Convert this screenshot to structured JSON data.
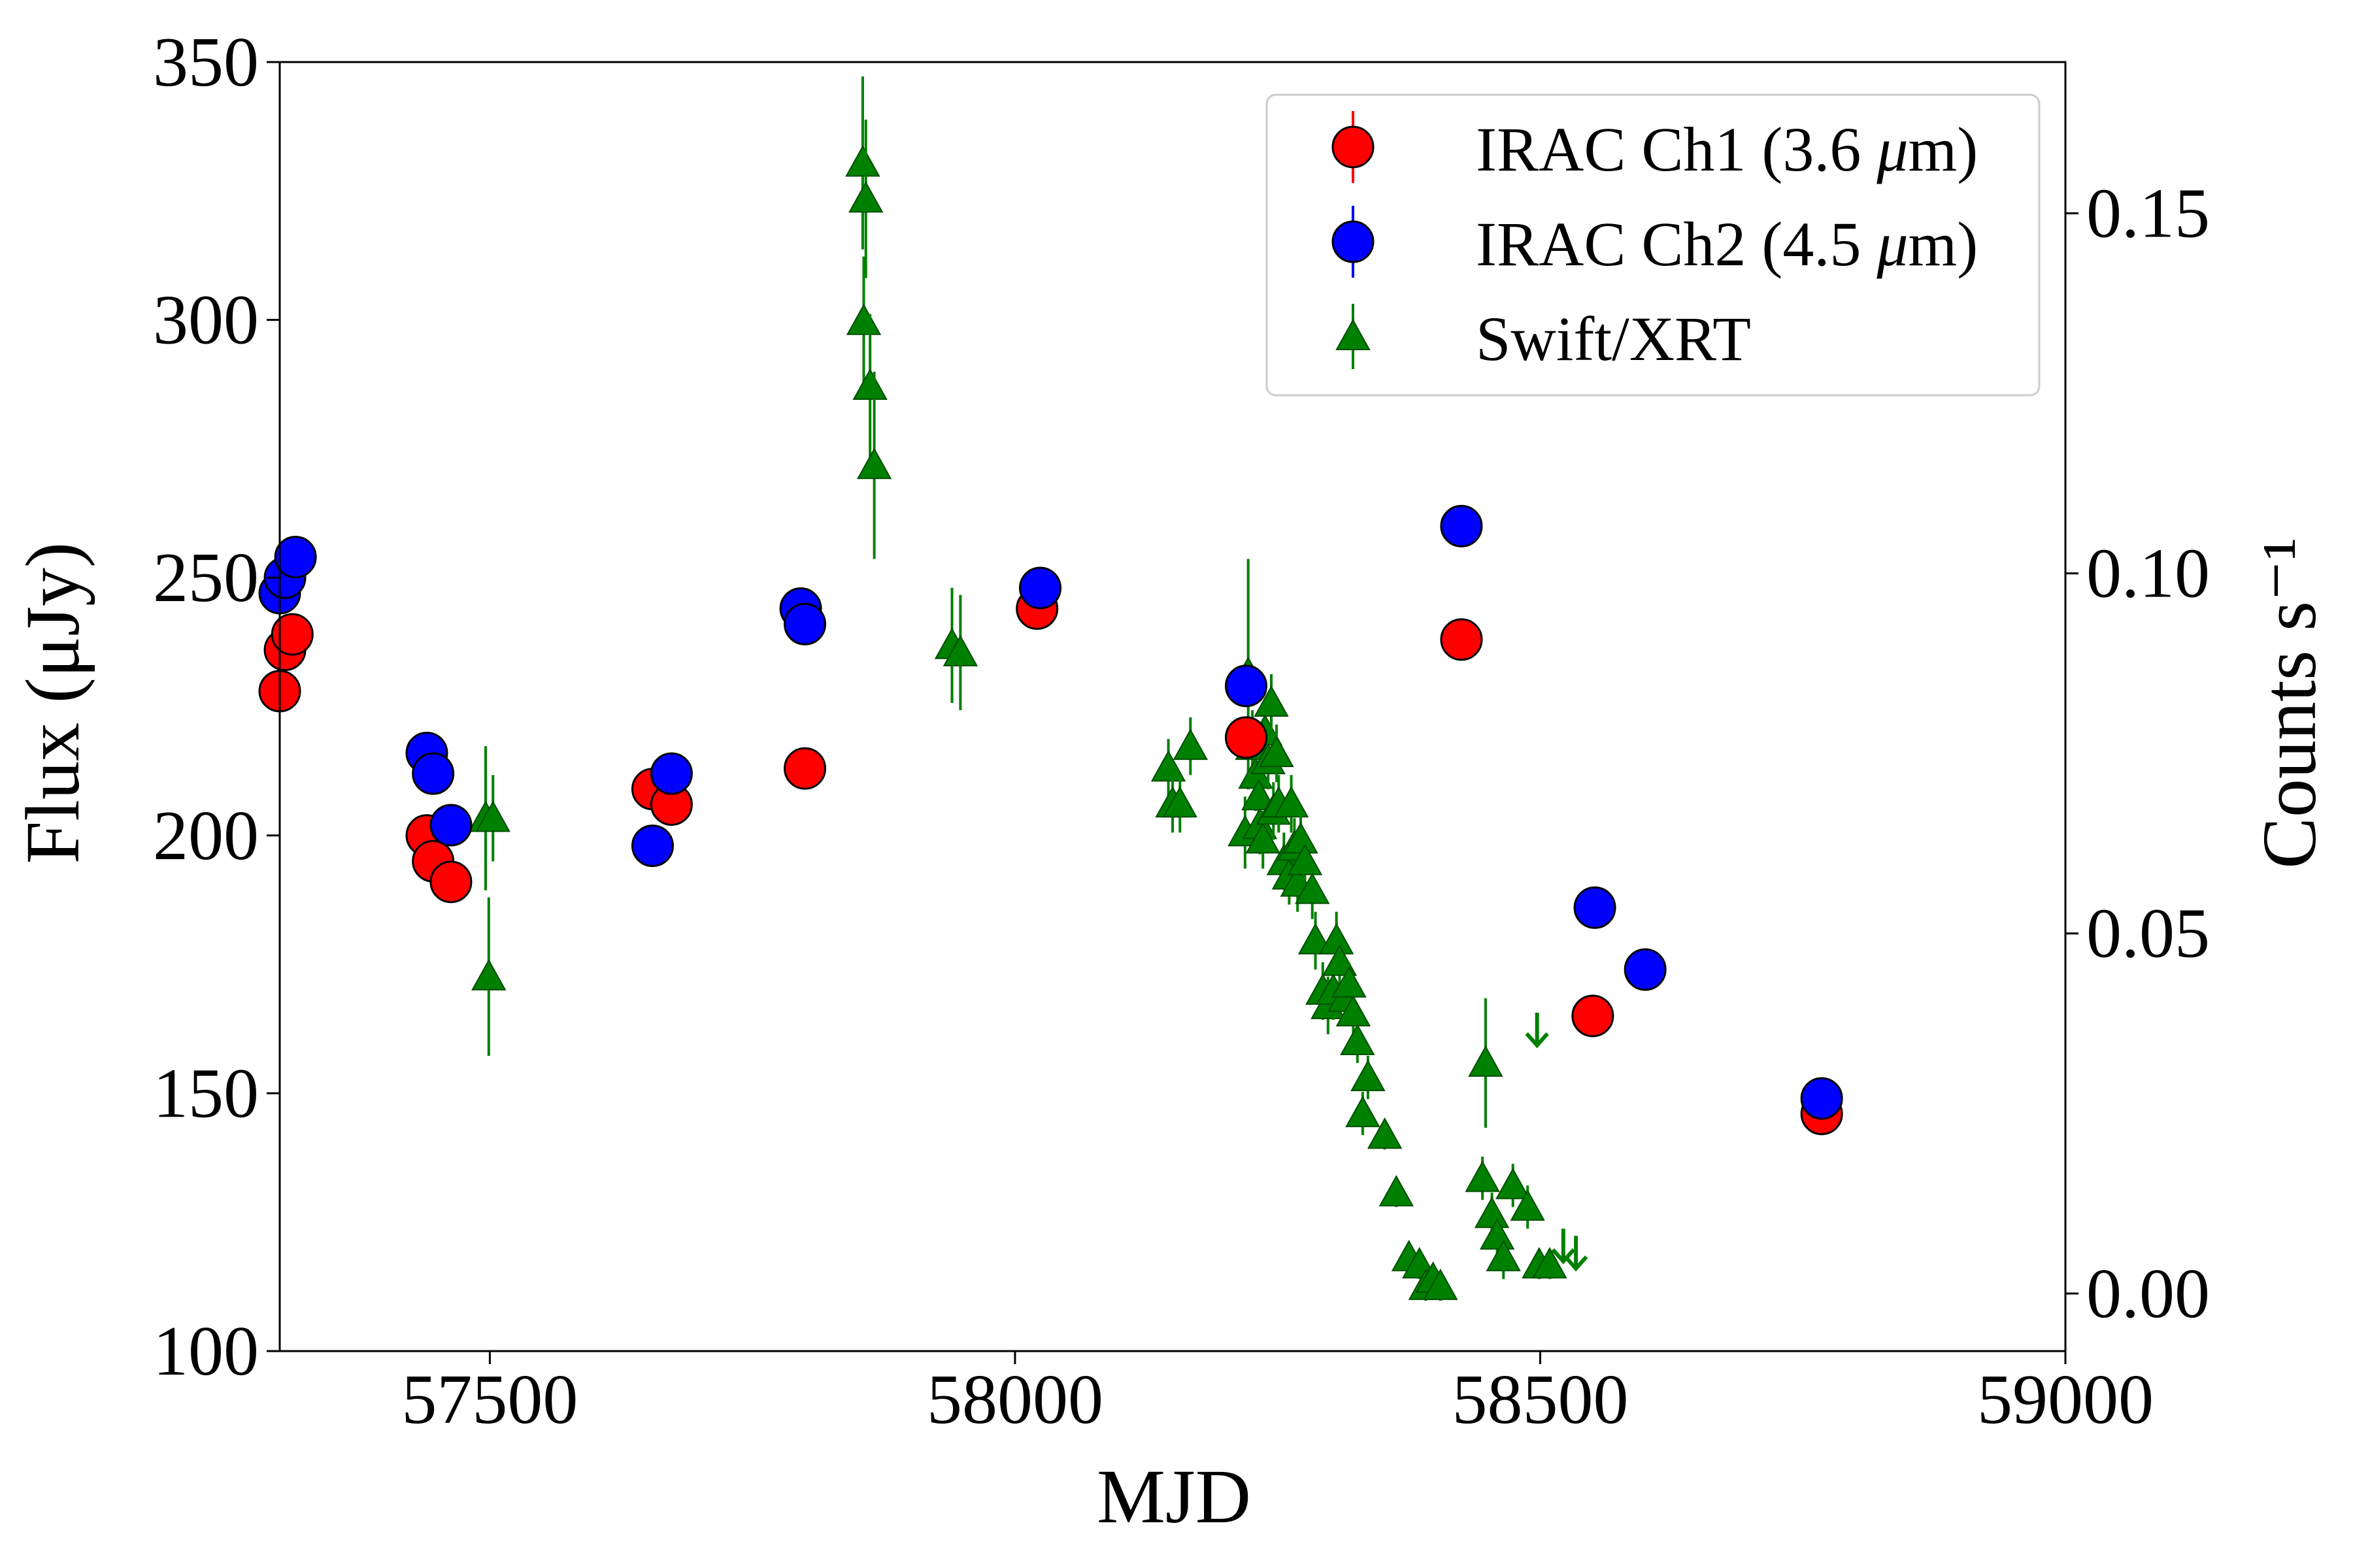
{
  "chart_data": {
    "type": "scatter",
    "title": "",
    "xlabel": "MJD",
    "ylabel": "Flux (μJy)",
    "ylabel_right": "Counts s⁻¹",
    "xlim": [
      57300,
      59000
    ],
    "ylim": [
      100,
      350
    ],
    "ylim_right": [
      -0.008,
      0.171
    ],
    "x_ticks": [
      57500,
      58000,
      58500,
      59000
    ],
    "x_tick_labels": [
      "57500",
      "58000",
      "58500",
      "59000"
    ],
    "y_ticks": [
      100,
      150,
      200,
      250,
      300,
      350
    ],
    "y_tick_labels": [
      "100",
      "150",
      "200",
      "250",
      "300",
      "350"
    ],
    "y_right_ticks": [
      0.0,
      0.05,
      0.1,
      0.15
    ],
    "y_right_tick_labels": [
      "0.00",
      "0.05",
      "0.10",
      "0.15"
    ],
    "grid": false,
    "legend_position": "top-right",
    "series": [
      {
        "name": "IRAC Ch1 (3.6 μm)",
        "legend_prefix": "IRAC Ch1 (3.6 ",
        "legend_mu": "μ",
        "legend_suffix": "m)",
        "color": "#ff0000",
        "marker": "circle",
        "axis": "left",
        "points": [
          [
            57300,
            228
          ],
          [
            57305,
            236
          ],
          [
            57312,
            239
          ],
          [
            57440,
            200
          ],
          [
            57446,
            195
          ],
          [
            57463,
            191
          ],
          [
            57655,
            209
          ],
          [
            57673,
            206
          ],
          [
            57800,
            213
          ],
          [
            58021,
            244
          ],
          [
            58220,
            219
          ],
          [
            58425,
            238
          ],
          [
            58550,
            165
          ],
          [
            58768,
            146
          ]
        ]
      },
      {
        "name": "IRAC Ch2 (4.5 μm)",
        "legend_prefix": "IRAC Ch2 (4.5 ",
        "legend_mu": "μ",
        "legend_suffix": "m)",
        "color": "#0000ff",
        "marker": "circle",
        "axis": "left",
        "points": [
          [
            57300,
            247
          ],
          [
            57305,
            250
          ],
          [
            57315,
            254
          ],
          [
            57440,
            216
          ],
          [
            57446,
            212
          ],
          [
            57463,
            202
          ],
          [
            57655,
            198
          ],
          [
            57673,
            212
          ],
          [
            57796,
            244
          ],
          [
            57800,
            241
          ],
          [
            58024,
            248
          ],
          [
            58220,
            229
          ],
          [
            58425,
            260
          ],
          [
            58552,
            186
          ],
          [
            58600,
            174
          ],
          [
            58768,
            149
          ]
        ]
      },
      {
        "name": "Swift/XRT",
        "legend_prefix": "Swift/XRT",
        "legend_mu": "",
        "legend_suffix": "",
        "color": "#008000",
        "marker": "triangle",
        "axis": "right",
        "points": [
          [
            57496,
            0.066,
            0.01
          ],
          [
            57503,
            0.066,
            0.006
          ],
          [
            57499,
            0.044,
            0.011
          ],
          [
            57855,
            0.157,
            0.012
          ],
          [
            57858,
            0.152,
            0.011
          ],
          [
            57856,
            0.135,
            0.009
          ],
          [
            57862,
            0.126,
            0.01
          ],
          [
            57866,
            0.115,
            0.013
          ],
          [
            57940,
            0.09,
            0.008
          ],
          [
            57948,
            0.089,
            0.008
          ],
          [
            58146,
            0.073,
            0.004
          ],
          [
            58150,
            0.068,
            0.004
          ],
          [
            58157,
            0.068,
            0.004
          ],
          [
            58167,
            0.076,
            0.004
          ],
          [
            58222,
            0.086,
            0.016
          ],
          [
            58219,
            0.064,
            0.005
          ],
          [
            58226,
            0.076,
            0.005
          ],
          [
            58229,
            0.072,
            0.005
          ],
          [
            58232,
            0.069,
            0.005
          ],
          [
            58233,
            0.065,
            0.004
          ],
          [
            58236,
            0.063,
            0.004
          ],
          [
            58238,
            0.078,
            0.004
          ],
          [
            58241,
            0.074,
            0.004
          ],
          [
            58244,
            0.082,
            0.004
          ],
          [
            58246,
            0.067,
            0.004
          ],
          [
            58249,
            0.075,
            0.004
          ],
          [
            58251,
            0.068,
            0.004
          ],
          [
            58256,
            0.06,
            0.004
          ],
          [
            58261,
            0.058,
            0.004
          ],
          [
            58263,
            0.068,
            0.004
          ],
          [
            58266,
            0.062,
            0.004
          ],
          [
            58269,
            0.057,
            0.004
          ],
          [
            58272,
            0.063,
            0.004
          ],
          [
            58276,
            0.06,
            0.004
          ],
          [
            58283,
            0.056,
            0.004
          ],
          [
            58286,
            0.049,
            0.004
          ],
          [
            58293,
            0.042,
            0.004
          ],
          [
            58298,
            0.04,
            0.004
          ],
          [
            58303,
            0.042,
            0.004
          ],
          [
            58306,
            0.049,
            0.004
          ],
          [
            58309,
            0.046,
            0.003
          ],
          [
            58314,
            0.041,
            0.003
          ],
          [
            58318,
            0.043,
            0.003
          ],
          [
            58322,
            0.039,
            0.003
          ],
          [
            58326,
            0.035,
            0.003
          ],
          [
            58331,
            0.025,
            0.003
          ],
          [
            58336,
            0.03,
            0.003
          ],
          [
            58352,
            0.022,
            0.002
          ],
          [
            58363,
            0.014,
            0.002
          ],
          [
            58375,
            0.005,
            0.002
          ],
          [
            58385,
            0.004,
            0.002
          ],
          [
            58391,
            0.001,
            0.002
          ],
          [
            58398,
            0.002,
            0.002
          ],
          [
            58405,
            0.001,
            0.002
          ],
          [
            58448,
            0.032,
            0.009
          ],
          [
            58445,
            0.016,
            0.003
          ],
          [
            58454,
            0.011,
            0.003
          ],
          [
            58459,
            0.008,
            0.003
          ],
          [
            58465,
            0.005,
            0.003
          ],
          [
            58474,
            0.015,
            0.003
          ],
          [
            58488,
            0.012,
            0.003
          ],
          [
            58499,
            0.004,
            0.002
          ],
          [
            58509,
            0.004,
            0.002
          ]
        ],
        "upper_limits": [
          [
            58497,
            0.037
          ],
          [
            58522,
            0.007
          ],
          [
            58534,
            0.006
          ]
        ]
      }
    ]
  }
}
